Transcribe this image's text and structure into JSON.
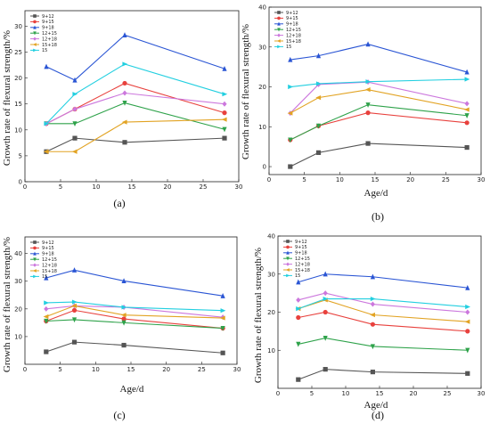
{
  "chart_data": [
    {
      "type": "line",
      "panel_label": "(a)",
      "xlabel": "",
      "ylabel": "Growth rate of  flexural  strength/%",
      "xlim": [
        0,
        30
      ],
      "ylim": [
        0,
        33
      ],
      "xticks": [
        0,
        5,
        10,
        15,
        20,
        25,
        30
      ],
      "yticks": [
        0,
        5,
        10,
        15,
        20,
        25,
        30
      ],
      "grid": false,
      "legend_position": "top-left",
      "series": [
        {
          "name": "9+12",
          "color": "#555555",
          "marker": "square",
          "x": [
            3,
            7,
            14,
            28
          ],
          "y": [
            5.8,
            8.4,
            7.6,
            8.4
          ]
        },
        {
          "name": "9+15",
          "color": "#e8413d",
          "marker": "circle",
          "x": [
            3,
            7,
            14,
            28
          ],
          "y": [
            11.2,
            14.0,
            19.0,
            13.3
          ]
        },
        {
          "name": "9+18",
          "color": "#2a55d4",
          "marker": "triangle-up",
          "x": [
            3,
            7,
            14,
            28
          ],
          "y": [
            22.2,
            19.6,
            28.3,
            21.8
          ]
        },
        {
          "name": "12+15",
          "color": "#2ea24a",
          "marker": "triangle-down",
          "x": [
            3,
            7,
            14,
            28
          ],
          "y": [
            11.2,
            11.2,
            15.2,
            10.1
          ]
        },
        {
          "name": "12+18",
          "color": "#cc77dd",
          "marker": "diamond",
          "x": [
            3,
            7,
            14,
            28
          ],
          "y": [
            11.2,
            14.0,
            17.1,
            15.0
          ]
        },
        {
          "name": "15+18",
          "color": "#e2a323",
          "marker": "triangle-left",
          "x": [
            3,
            7,
            14,
            28
          ],
          "y": [
            5.8,
            5.8,
            11.5,
            12.0
          ]
        },
        {
          "name": "15",
          "color": "#22cfe0",
          "marker": "triangle-right",
          "x": [
            3,
            7,
            14,
            28
          ],
          "y": [
            11.2,
            16.9,
            22.7,
            16.9
          ]
        }
      ]
    },
    {
      "type": "line",
      "panel_label": "(b)",
      "xlabel": "Age/d",
      "ylabel": "Growth rate of  flexural  strength/%",
      "xlim": [
        0,
        30
      ],
      "ylim": [
        -2,
        40
      ],
      "xticks": [
        0,
        5,
        10,
        15,
        20,
        25,
        30
      ],
      "yticks": [
        0,
        10,
        20,
        30,
        40
      ],
      "grid": false,
      "legend_position": "top-left",
      "series": [
        {
          "name": "9+12",
          "color": "#555555",
          "marker": "square",
          "x": [
            3,
            7,
            14,
            28
          ],
          "y": [
            0.0,
            3.5,
            5.8,
            4.8
          ]
        },
        {
          "name": "9+15",
          "color": "#e8413d",
          "marker": "circle",
          "x": [
            3,
            7,
            14,
            28
          ],
          "y": [
            6.7,
            10.2,
            13.5,
            11.0
          ]
        },
        {
          "name": "9+18",
          "color": "#2a55d4",
          "marker": "triangle-up",
          "x": [
            3,
            7,
            14,
            28
          ],
          "y": [
            26.8,
            27.8,
            30.7,
            23.7
          ]
        },
        {
          "name": "12+15",
          "color": "#2ea24a",
          "marker": "triangle-down",
          "x": [
            3,
            7,
            14,
            28
          ],
          "y": [
            6.7,
            10.2,
            15.5,
            12.8
          ]
        },
        {
          "name": "12+18",
          "color": "#cc77dd",
          "marker": "diamond",
          "x": [
            3,
            7,
            14,
            28
          ],
          "y": [
            13.4,
            20.6,
            21.2,
            15.8
          ]
        },
        {
          "name": "15+18",
          "color": "#e2a323",
          "marker": "triangle-left",
          "x": [
            3,
            7,
            14,
            28
          ],
          "y": [
            13.4,
            17.3,
            19.3,
            14.3
          ]
        },
        {
          "name": "15",
          "color": "#22cfe0",
          "marker": "triangle-right",
          "x": [
            3,
            7,
            14,
            28
          ],
          "y": [
            20.0,
            20.8,
            21.3,
            21.9
          ]
        }
      ]
    },
    {
      "type": "line",
      "panel_label": "(c)",
      "xlabel": "Age/d",
      "ylabel": "Growth rate of  flexural  strength/%",
      "xlim": [
        0,
        30
      ],
      "ylim": [
        0,
        46
      ],
      "xticks": [
        0,
        5,
        10,
        15,
        20,
        25,
        30
      ],
      "yticks": [
        10,
        20,
        30,
        40
      ],
      "grid": false,
      "legend_position": "top-left",
      "series": [
        {
          "name": "9+12",
          "color": "#555555",
          "marker": "square",
          "x": [
            3,
            7,
            14,
            28
          ],
          "y": [
            4.5,
            8.0,
            6.9,
            4.1
          ]
        },
        {
          "name": "9+15",
          "color": "#e8413d",
          "marker": "circle",
          "x": [
            3,
            7,
            14,
            28
          ],
          "y": [
            15.6,
            19.5,
            16.4,
            13.0
          ]
        },
        {
          "name": "9+18",
          "color": "#2a55d4",
          "marker": "triangle-up",
          "x": [
            3,
            7,
            14,
            28
          ],
          "y": [
            31.2,
            34.0,
            30.1,
            24.7
          ]
        },
        {
          "name": "12+15",
          "color": "#2ea24a",
          "marker": "triangle-down",
          "x": [
            3,
            7,
            14,
            28
          ],
          "y": [
            15.6,
            16.1,
            15.0,
            13.0
          ]
        },
        {
          "name": "12+18",
          "color": "#cc77dd",
          "marker": "diamond",
          "x": [
            3,
            7,
            14,
            28
          ],
          "y": [
            20.0,
            21.1,
            20.6,
            17.0
          ]
        },
        {
          "name": "15+18",
          "color": "#e2a323",
          "marker": "triangle-left",
          "x": [
            3,
            7,
            14,
            28
          ],
          "y": [
            17.2,
            21.1,
            17.8,
            16.7
          ]
        },
        {
          "name": "15",
          "color": "#22cfe0",
          "marker": "triangle-right",
          "x": [
            3,
            7,
            14,
            28
          ],
          "y": [
            22.2,
            22.5,
            20.6,
            19.4
          ]
        }
      ]
    },
    {
      "type": "line",
      "panel_label": "(d)",
      "xlabel": "Age/d",
      "ylabel": "Growth rate of  flexural  strength/%",
      "xlim": [
        0,
        30
      ],
      "ylim": [
        0,
        40
      ],
      "xticks": [
        0,
        5,
        10,
        15,
        20,
        25,
        30
      ],
      "yticks": [
        10,
        20,
        30,
        40
      ],
      "grid": false,
      "legend_position": "top-left",
      "series": [
        {
          "name": "9+12",
          "color": "#555555",
          "marker": "square",
          "x": [
            3,
            7,
            14,
            28
          ],
          "y": [
            2.3,
            5.0,
            4.3,
            3.9
          ]
        },
        {
          "name": "9+15",
          "color": "#e8413d",
          "marker": "circle",
          "x": [
            3,
            7,
            14,
            28
          ],
          "y": [
            18.6,
            20.0,
            16.8,
            15.0
          ]
        },
        {
          "name": "9+18",
          "color": "#2a55d4",
          "marker": "triangle-up",
          "x": [
            3,
            7,
            14,
            28
          ],
          "y": [
            27.9,
            30.0,
            29.3,
            26.4
          ]
        },
        {
          "name": "12+15",
          "color": "#2ea24a",
          "marker": "triangle-down",
          "x": [
            3,
            7,
            14,
            28
          ],
          "y": [
            11.6,
            13.2,
            11.0,
            10.0
          ]
        },
        {
          "name": "12+18",
          "color": "#cc77dd",
          "marker": "diamond",
          "x": [
            3,
            7,
            14,
            28
          ],
          "y": [
            23.2,
            25.0,
            22.1,
            20.0
          ]
        },
        {
          "name": "15+18",
          "color": "#e2a323",
          "marker": "triangle-left",
          "x": [
            3,
            7,
            14,
            28
          ],
          "y": [
            20.9,
            23.2,
            19.3,
            17.5
          ]
        },
        {
          "name": "15",
          "color": "#22cfe0",
          "marker": "triangle-right",
          "x": [
            3,
            7,
            14,
            28
          ],
          "y": [
            20.9,
            23.5,
            23.5,
            21.4
          ]
        }
      ]
    }
  ]
}
